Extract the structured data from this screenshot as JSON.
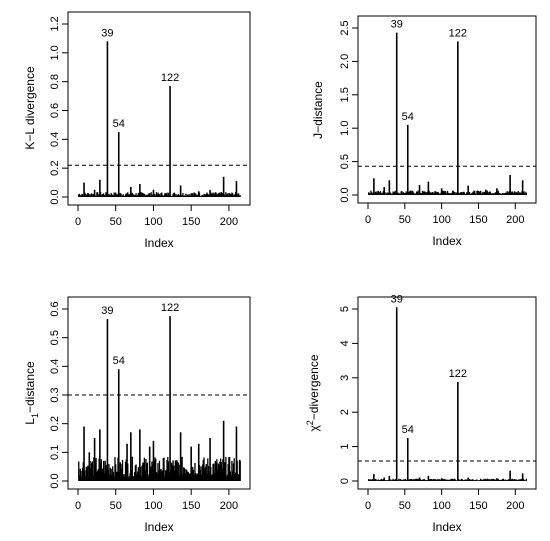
{
  "chart_data": [
    {
      "type": "line",
      "xlabel": "Index",
      "ylabel": "K−L divergence",
      "xlim": [
        0,
        220
      ],
      "ylim": [
        0,
        1.2
      ],
      "xticks": [
        0,
        50,
        100,
        150,
        200
      ],
      "yticks": [
        0.0,
        0.2,
        0.4,
        0.6,
        0.8,
        1.0,
        1.2
      ],
      "ytick_labels": [
        "0.0",
        "0.2",
        "0.4",
        "0.6",
        "0.8",
        "1.0",
        "1.2"
      ],
      "threshold": 0.22,
      "baseline_level": 0.02,
      "peaks": [
        {
          "x": 8,
          "y": 0.1
        },
        {
          "x": 22,
          "y": 0.05
        },
        {
          "x": 29,
          "y": 0.12
        },
        {
          "x": 39,
          "y": 1.08,
          "label": "39"
        },
        {
          "x": 54,
          "y": 0.45,
          "label": "54"
        },
        {
          "x": 70,
          "y": 0.07
        },
        {
          "x": 82,
          "y": 0.09
        },
        {
          "x": 100,
          "y": 0.05
        },
        {
          "x": 122,
          "y": 0.77,
          "label": "122"
        },
        {
          "x": 136,
          "y": 0.08
        },
        {
          "x": 160,
          "y": 0.04
        },
        {
          "x": 175,
          "y": 0.05
        },
        {
          "x": 193,
          "y": 0.14
        },
        {
          "x": 210,
          "y": 0.11
        }
      ]
    },
    {
      "type": "line",
      "xlabel": "Index",
      "ylabel": "J−distance",
      "xlim": [
        0,
        220
      ],
      "ylim": [
        0,
        2.5
      ],
      "xticks": [
        0,
        50,
        100,
        150,
        200
      ],
      "yticks": [
        0.0,
        0.5,
        1.0,
        1.5,
        2.0,
        2.5
      ],
      "ytick_labels": [
        "0.0",
        "0.5",
        "1.0",
        "1.5",
        "2.0",
        "2.5"
      ],
      "threshold": 0.43,
      "baseline_level": 0.04,
      "peaks": [
        {
          "x": 8,
          "y": 0.25
        },
        {
          "x": 22,
          "y": 0.12
        },
        {
          "x": 29,
          "y": 0.22
        },
        {
          "x": 39,
          "y": 2.43,
          "label": "39"
        },
        {
          "x": 54,
          "y": 1.05,
          "label": "54"
        },
        {
          "x": 70,
          "y": 0.15
        },
        {
          "x": 82,
          "y": 0.2
        },
        {
          "x": 100,
          "y": 0.1
        },
        {
          "x": 122,
          "y": 2.3,
          "label": "122"
        },
        {
          "x": 136,
          "y": 0.14
        },
        {
          "x": 160,
          "y": 0.08
        },
        {
          "x": 175,
          "y": 0.1
        },
        {
          "x": 193,
          "y": 0.3
        },
        {
          "x": 210,
          "y": 0.22
        }
      ]
    },
    {
      "type": "line",
      "xlabel": "Index",
      "ylabel": "L",
      "ylabel_subscript": "1",
      "ylabel_suffix": "−distance",
      "xlim": [
        0,
        220
      ],
      "ylim": [
        0,
        0.6
      ],
      "xticks": [
        0,
        50,
        100,
        150,
        200
      ],
      "yticks": [
        0.0,
        0.1,
        0.2,
        0.3,
        0.4,
        0.5,
        0.6
      ],
      "ytick_labels": [
        "0.0",
        "0.1",
        "0.2",
        "0.3",
        "0.4",
        "0.5",
        "0.6"
      ],
      "threshold": 0.3,
      "baseline_level": 0.05,
      "peaks": [
        {
          "x": 8,
          "y": 0.19
        },
        {
          "x": 15,
          "y": 0.1
        },
        {
          "x": 22,
          "y": 0.15
        },
        {
          "x": 29,
          "y": 0.18
        },
        {
          "x": 39,
          "y": 0.565,
          "label": "39"
        },
        {
          "x": 54,
          "y": 0.39,
          "label": "54"
        },
        {
          "x": 65,
          "y": 0.13
        },
        {
          "x": 70,
          "y": 0.17
        },
        {
          "x": 82,
          "y": 0.18
        },
        {
          "x": 95,
          "y": 0.12
        },
        {
          "x": 100,
          "y": 0.14
        },
        {
          "x": 122,
          "y": 0.575,
          "label": "122"
        },
        {
          "x": 136,
          "y": 0.17
        },
        {
          "x": 150,
          "y": 0.12
        },
        {
          "x": 160,
          "y": 0.13
        },
        {
          "x": 175,
          "y": 0.15
        },
        {
          "x": 193,
          "y": 0.21
        },
        {
          "x": 210,
          "y": 0.19
        }
      ]
    },
    {
      "type": "line",
      "xlabel": "Index",
      "ylabel": "χ",
      "ylabel_superscript": "2",
      "ylabel_suffix": "−divergence",
      "xlim": [
        0,
        220
      ],
      "ylim": [
        0,
        5
      ],
      "xticks": [
        0,
        50,
        100,
        150,
        200
      ],
      "yticks": [
        0,
        1,
        2,
        3,
        4,
        5
      ],
      "ytick_labels": [
        "0",
        "1",
        "2",
        "3",
        "4",
        "5"
      ],
      "threshold": 0.58,
      "baseline_level": 0.04,
      "peaks": [
        {
          "x": 8,
          "y": 0.2
        },
        {
          "x": 22,
          "y": 0.1
        },
        {
          "x": 29,
          "y": 0.15
        },
        {
          "x": 39,
          "y": 5.05,
          "label": "39"
        },
        {
          "x": 54,
          "y": 1.25,
          "label": "54"
        },
        {
          "x": 70,
          "y": 0.1
        },
        {
          "x": 82,
          "y": 0.15
        },
        {
          "x": 100,
          "y": 0.08
        },
        {
          "x": 122,
          "y": 2.88,
          "label": "122"
        },
        {
          "x": 136,
          "y": 0.1
        },
        {
          "x": 160,
          "y": 0.05
        },
        {
          "x": 175,
          "y": 0.08
        },
        {
          "x": 193,
          "y": 0.3
        },
        {
          "x": 210,
          "y": 0.22
        }
      ]
    }
  ]
}
